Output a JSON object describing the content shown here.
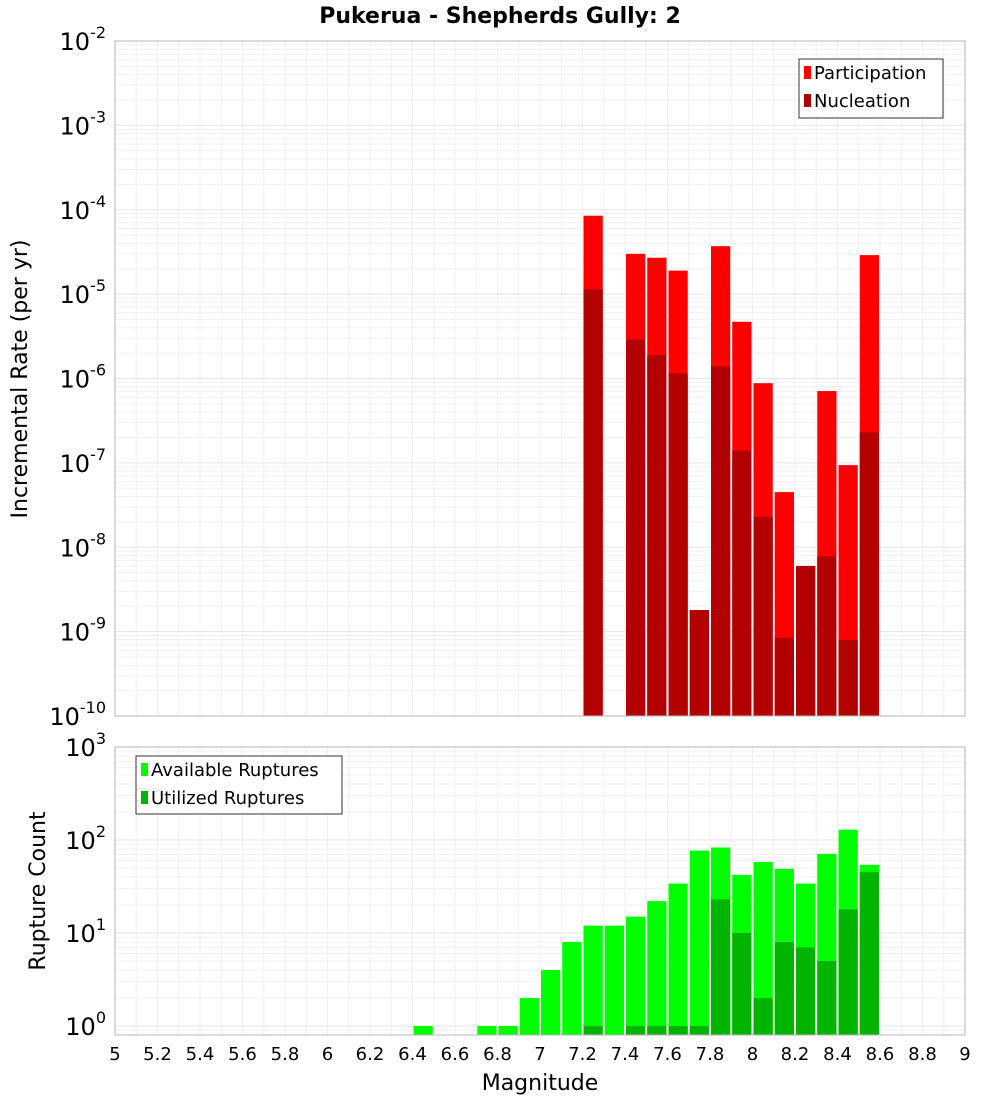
{
  "title": "Pukerua - Shepherds Gully: 2",
  "colors": {
    "participation": "#ff0000",
    "nucleation": "#b30000",
    "available": "#00ff00",
    "utilized": "#00b400"
  },
  "chart_data": [
    {
      "type": "bar",
      "ylabel": "Incremental Rate (per yr)",
      "yscale": "log",
      "ylim": [
        1e-10,
        0.01
      ],
      "xlim": [
        5,
        9
      ],
      "legend_position": "top-right",
      "grid": true,
      "series": [
        {
          "name": "Participation",
          "color": "#ff0000",
          "x": [
            7.25,
            7.45,
            7.55,
            7.65,
            7.75,
            7.85,
            7.95,
            8.05,
            8.15,
            8.25,
            8.35,
            8.45,
            8.55
          ],
          "values": [
            8.5e-05,
            3e-05,
            2.7e-05,
            1.9e-05,
            1.8e-09,
            3.7e-05,
            4.7e-06,
            8.8e-07,
            4.5e-08,
            6e-09,
            7.1e-07,
            9.4e-08,
            2.9e-05
          ]
        },
        {
          "name": "Nucleation",
          "color": "#b30000",
          "x": [
            7.25,
            7.45,
            7.55,
            7.65,
            7.75,
            7.85,
            7.95,
            8.05,
            8.15,
            8.25,
            8.35,
            8.45,
            8.55
          ],
          "values": [
            1.15e-05,
            2.9e-06,
            1.9e-06,
            1.15e-06,
            1.8e-09,
            1.4e-06,
            1.4e-07,
            2.3e-08,
            8.5e-10,
            6e-09,
            7.8e-09,
            8e-10,
            2.3e-07
          ]
        }
      ]
    },
    {
      "type": "bar",
      "xlabel": "Magnitude",
      "ylabel": "Rupture Count",
      "yscale": "log",
      "ylim": [
        0.8,
        1000
      ],
      "xlim": [
        5,
        9
      ],
      "legend_position": "top-left",
      "grid": true,
      "series": [
        {
          "name": "Available Ruptures",
          "color": "#00ff00",
          "x": [
            6.45,
            6.75,
            6.85,
            6.95,
            7.05,
            7.15,
            7.25,
            7.35,
            7.45,
            7.55,
            7.65,
            7.75,
            7.85,
            7.95,
            8.05,
            8.15,
            8.25,
            8.35,
            8.45,
            8.55
          ],
          "values": [
            1,
            1,
            1,
            2,
            4,
            8,
            12,
            12,
            15,
            22,
            34,
            77,
            83,
            42,
            58,
            49,
            34,
            71,
            129,
            54
          ]
        },
        {
          "name": "Utilized Ruptures",
          "color": "#00b400",
          "x": [
            7.25,
            7.45,
            7.55,
            7.65,
            7.75,
            7.85,
            7.95,
            8.05,
            8.15,
            8.25,
            8.35,
            8.45,
            8.55
          ],
          "values": [
            1,
            1,
            1,
            1,
            1,
            23,
            10,
            2,
            8,
            7,
            5,
            18,
            45
          ]
        }
      ]
    }
  ],
  "x_ticks": [
    "5",
    "5.2",
    "5.4",
    "5.6",
    "5.8",
    "6",
    "6.2",
    "6.4",
    "6.6",
    "6.8",
    "7",
    "7.2",
    "7.4",
    "7.6",
    "7.8",
    "8",
    "8.2",
    "8.4",
    "8.6",
    "8.8",
    "9"
  ],
  "top_y_ticks": [
    {
      "base": "10",
      "exp": "-10"
    },
    {
      "base": "10",
      "exp": "-9"
    },
    {
      "base": "10",
      "exp": "-8"
    },
    {
      "base": "10",
      "exp": "-7"
    },
    {
      "base": "10",
      "exp": "-6"
    },
    {
      "base": "10",
      "exp": "-5"
    },
    {
      "base": "10",
      "exp": "-4"
    },
    {
      "base": "10",
      "exp": "-3"
    },
    {
      "base": "10",
      "exp": "-2"
    }
  ],
  "bottom_y_ticks": [
    {
      "base": "10",
      "exp": "0"
    },
    {
      "base": "10",
      "exp": "1"
    },
    {
      "base": "10",
      "exp": "2"
    },
    {
      "base": "10",
      "exp": "3"
    }
  ]
}
